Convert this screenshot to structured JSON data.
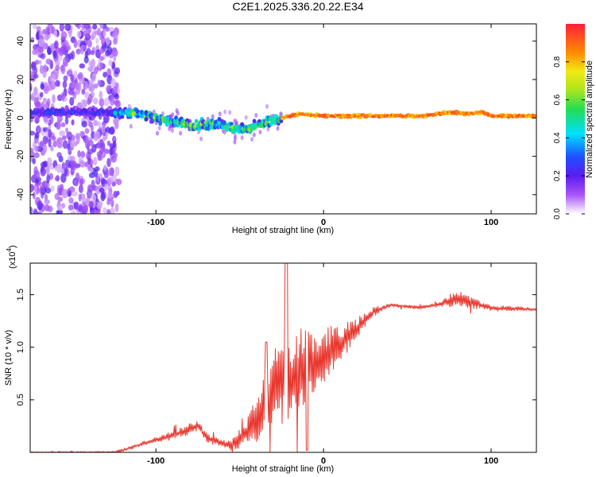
{
  "title": "C2E1.2025.336.20.22.E34",
  "chart_data": [
    {
      "type": "heatmap",
      "name": "spectrogram",
      "xlabel": "Height of straight line (km)",
      "ylabel": "Frequency (Hz)",
      "xlim": [
        -175,
        127
      ],
      "ylim": [
        -50,
        49
      ],
      "xticks": [
        -100,
        0,
        100
      ],
      "yticks": [
        -40,
        -20,
        0,
        20,
        40
      ],
      "ridge": {
        "x": [
          -128,
          -110,
          -100,
          -85,
          -75,
          -65,
          -55,
          -45,
          -38,
          -33,
          -25,
          -20,
          -15,
          0,
          20,
          40,
          60,
          75,
          85,
          95,
          100,
          110,
          127
        ],
        "freq": [
          3,
          2,
          0,
          -3,
          -4,
          -3,
          -5,
          -6,
          -4,
          -2,
          0,
          1,
          2,
          1,
          1,
          1,
          1,
          3,
          2,
          3,
          1,
          1,
          1
        ]
      },
      "colorbar": {
        "label": "Normalized spectral amplitude",
        "range": [
          0,
          1
        ],
        "ticks": [
          "0.0",
          "0.2",
          "0.4",
          "0.6",
          "0.8"
        ],
        "tick_values": [
          0.0,
          0.2,
          0.4,
          0.6,
          0.8
        ]
      }
    },
    {
      "type": "line",
      "name": "snr",
      "xlabel": "Height of straight line (km)",
      "ylabel": "SNR (10 * v/v)",
      "multiplier": "(x10",
      "multiplier_exp": "4",
      "multiplier_close": ")",
      "xlim": [
        -175,
        127
      ],
      "ylim": [
        0,
        1.8
      ],
      "xticks": [
        -100,
        0,
        100
      ],
      "yticks": [
        "0.5",
        "1.0",
        "1.5"
      ],
      "ytick_values": [
        0.5,
        1.0,
        1.5
      ],
      "color": "#e8362d",
      "envelope": {
        "x": [
          -175,
          -125,
          -120,
          -110,
          -100,
          -90,
          -80,
          -75,
          -70,
          -60,
          -55,
          -50,
          -45,
          -40,
          -35,
          -30,
          -25,
          -20,
          -15,
          -10,
          -5,
          0,
          5,
          10,
          15,
          20,
          25,
          30,
          40,
          50,
          60,
          70,
          80,
          90,
          100,
          110,
          127
        ],
        "y": [
          0.0,
          0.0,
          0.02,
          0.07,
          0.12,
          0.16,
          0.22,
          0.26,
          0.14,
          0.08,
          0.07,
          0.13,
          0.2,
          0.3,
          0.42,
          0.55,
          0.68,
          0.62,
          0.78,
          0.85,
          0.78,
          0.92,
          0.98,
          1.02,
          1.12,
          1.18,
          1.26,
          1.34,
          1.4,
          1.39,
          1.38,
          1.41,
          1.47,
          1.42,
          1.37,
          1.37,
          1.36
        ]
      },
      "noise": {
        "x": [
          -175,
          -125,
          -100,
          -80,
          -60,
          -50,
          -40,
          -30,
          -25,
          -20,
          -10,
          0,
          10,
          20,
          30,
          40,
          70,
          75,
          85,
          95,
          127
        ],
        "amp": [
          0.004,
          0.01,
          0.025,
          0.05,
          0.03,
          0.08,
          0.2,
          0.36,
          0.42,
          0.38,
          0.33,
          0.24,
          0.17,
          0.1,
          0.04,
          0.015,
          0.02,
          0.06,
          0.07,
          0.03,
          0.012
        ]
      }
    }
  ]
}
